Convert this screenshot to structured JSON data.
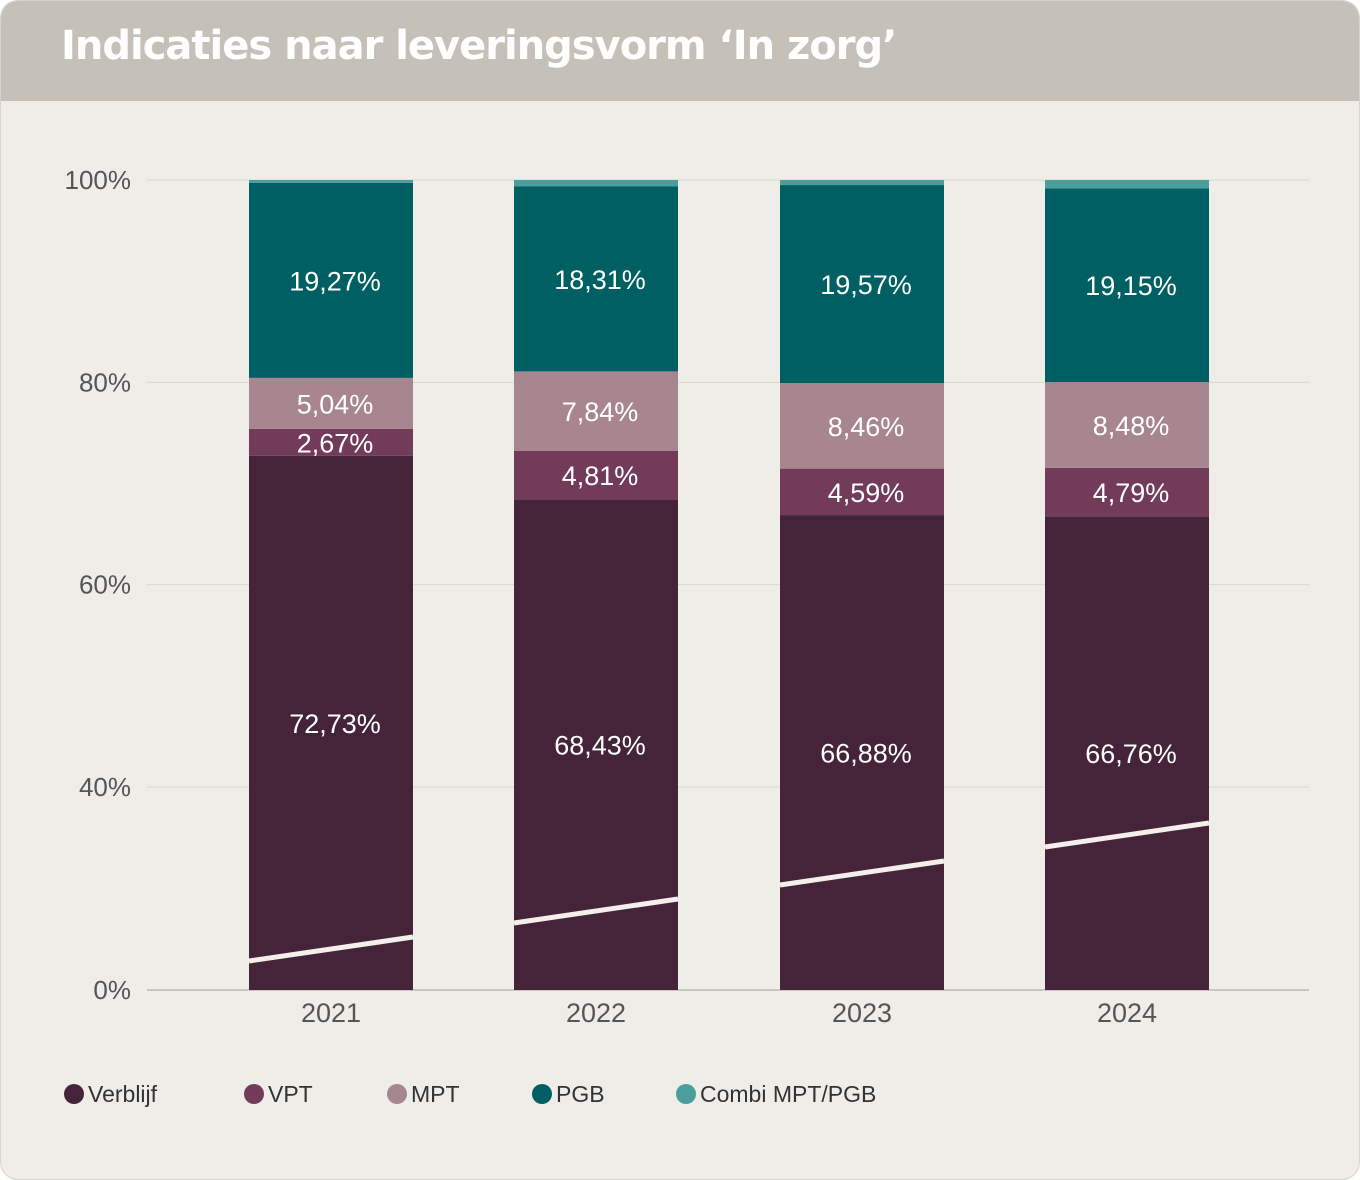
{
  "header": {
    "title": "Indicaties naar leveringsvorm ‘In zorg’"
  },
  "colors": {
    "background": "#efede8",
    "header": "#c6c1b8",
    "gridline": "#d9d6d0",
    "axis_text": "#555555",
    "segment_label": "#ffffff",
    "trend_line": "#f3efea"
  },
  "chart_data": {
    "type": "bar",
    "stacked": true,
    "categories": [
      "2021",
      "2022",
      "2023",
      "2024"
    ],
    "series": [
      {
        "name": "Verblijf",
        "color": "#45243a",
        "values": [
          72.73,
          68.43,
          66.88,
          66.76
        ],
        "labels": [
          "72,73%",
          "68,43%",
          "66,88%",
          "66,76%"
        ]
      },
      {
        "name": "VPT",
        "color": "#713b59",
        "values": [
          2.67,
          4.81,
          4.59,
          4.79
        ],
        "labels": [
          "2,67%",
          "4,81%",
          "4,59%",
          "4,79%"
        ]
      },
      {
        "name": "MPT",
        "color": "#a8868f",
        "values": [
          5.04,
          7.84,
          8.46,
          8.48
        ],
        "labels": [
          "5,04%",
          "7,84%",
          "8,46%",
          "8,48%"
        ]
      },
      {
        "name": "PGB",
        "color": "#005f63",
        "values": [
          19.27,
          18.31,
          19.57,
          19.15
        ],
        "labels": [
          "19,27%",
          "18,31%",
          "19,57%",
          "19,15%"
        ]
      },
      {
        "name": "Combi MPT/PGB",
        "color": "#4a9e9b",
        "values": [
          0.29,
          0.61,
          0.5,
          0.82
        ],
        "labels": [
          "",
          "",
          "",
          ""
        ]
      }
    ],
    "y_axis": {
      "ticks": [
        0,
        40,
        60,
        80,
        100
      ],
      "tick_labels": [
        "0%",
        "40%",
        "60%",
        "80%",
        "100%"
      ],
      "range": [
        0,
        100
      ],
      "broken": true,
      "gridlines": [
        0,
        40,
        60,
        80,
        100
      ]
    },
    "legend": {
      "position": "bottom-left"
    }
  }
}
